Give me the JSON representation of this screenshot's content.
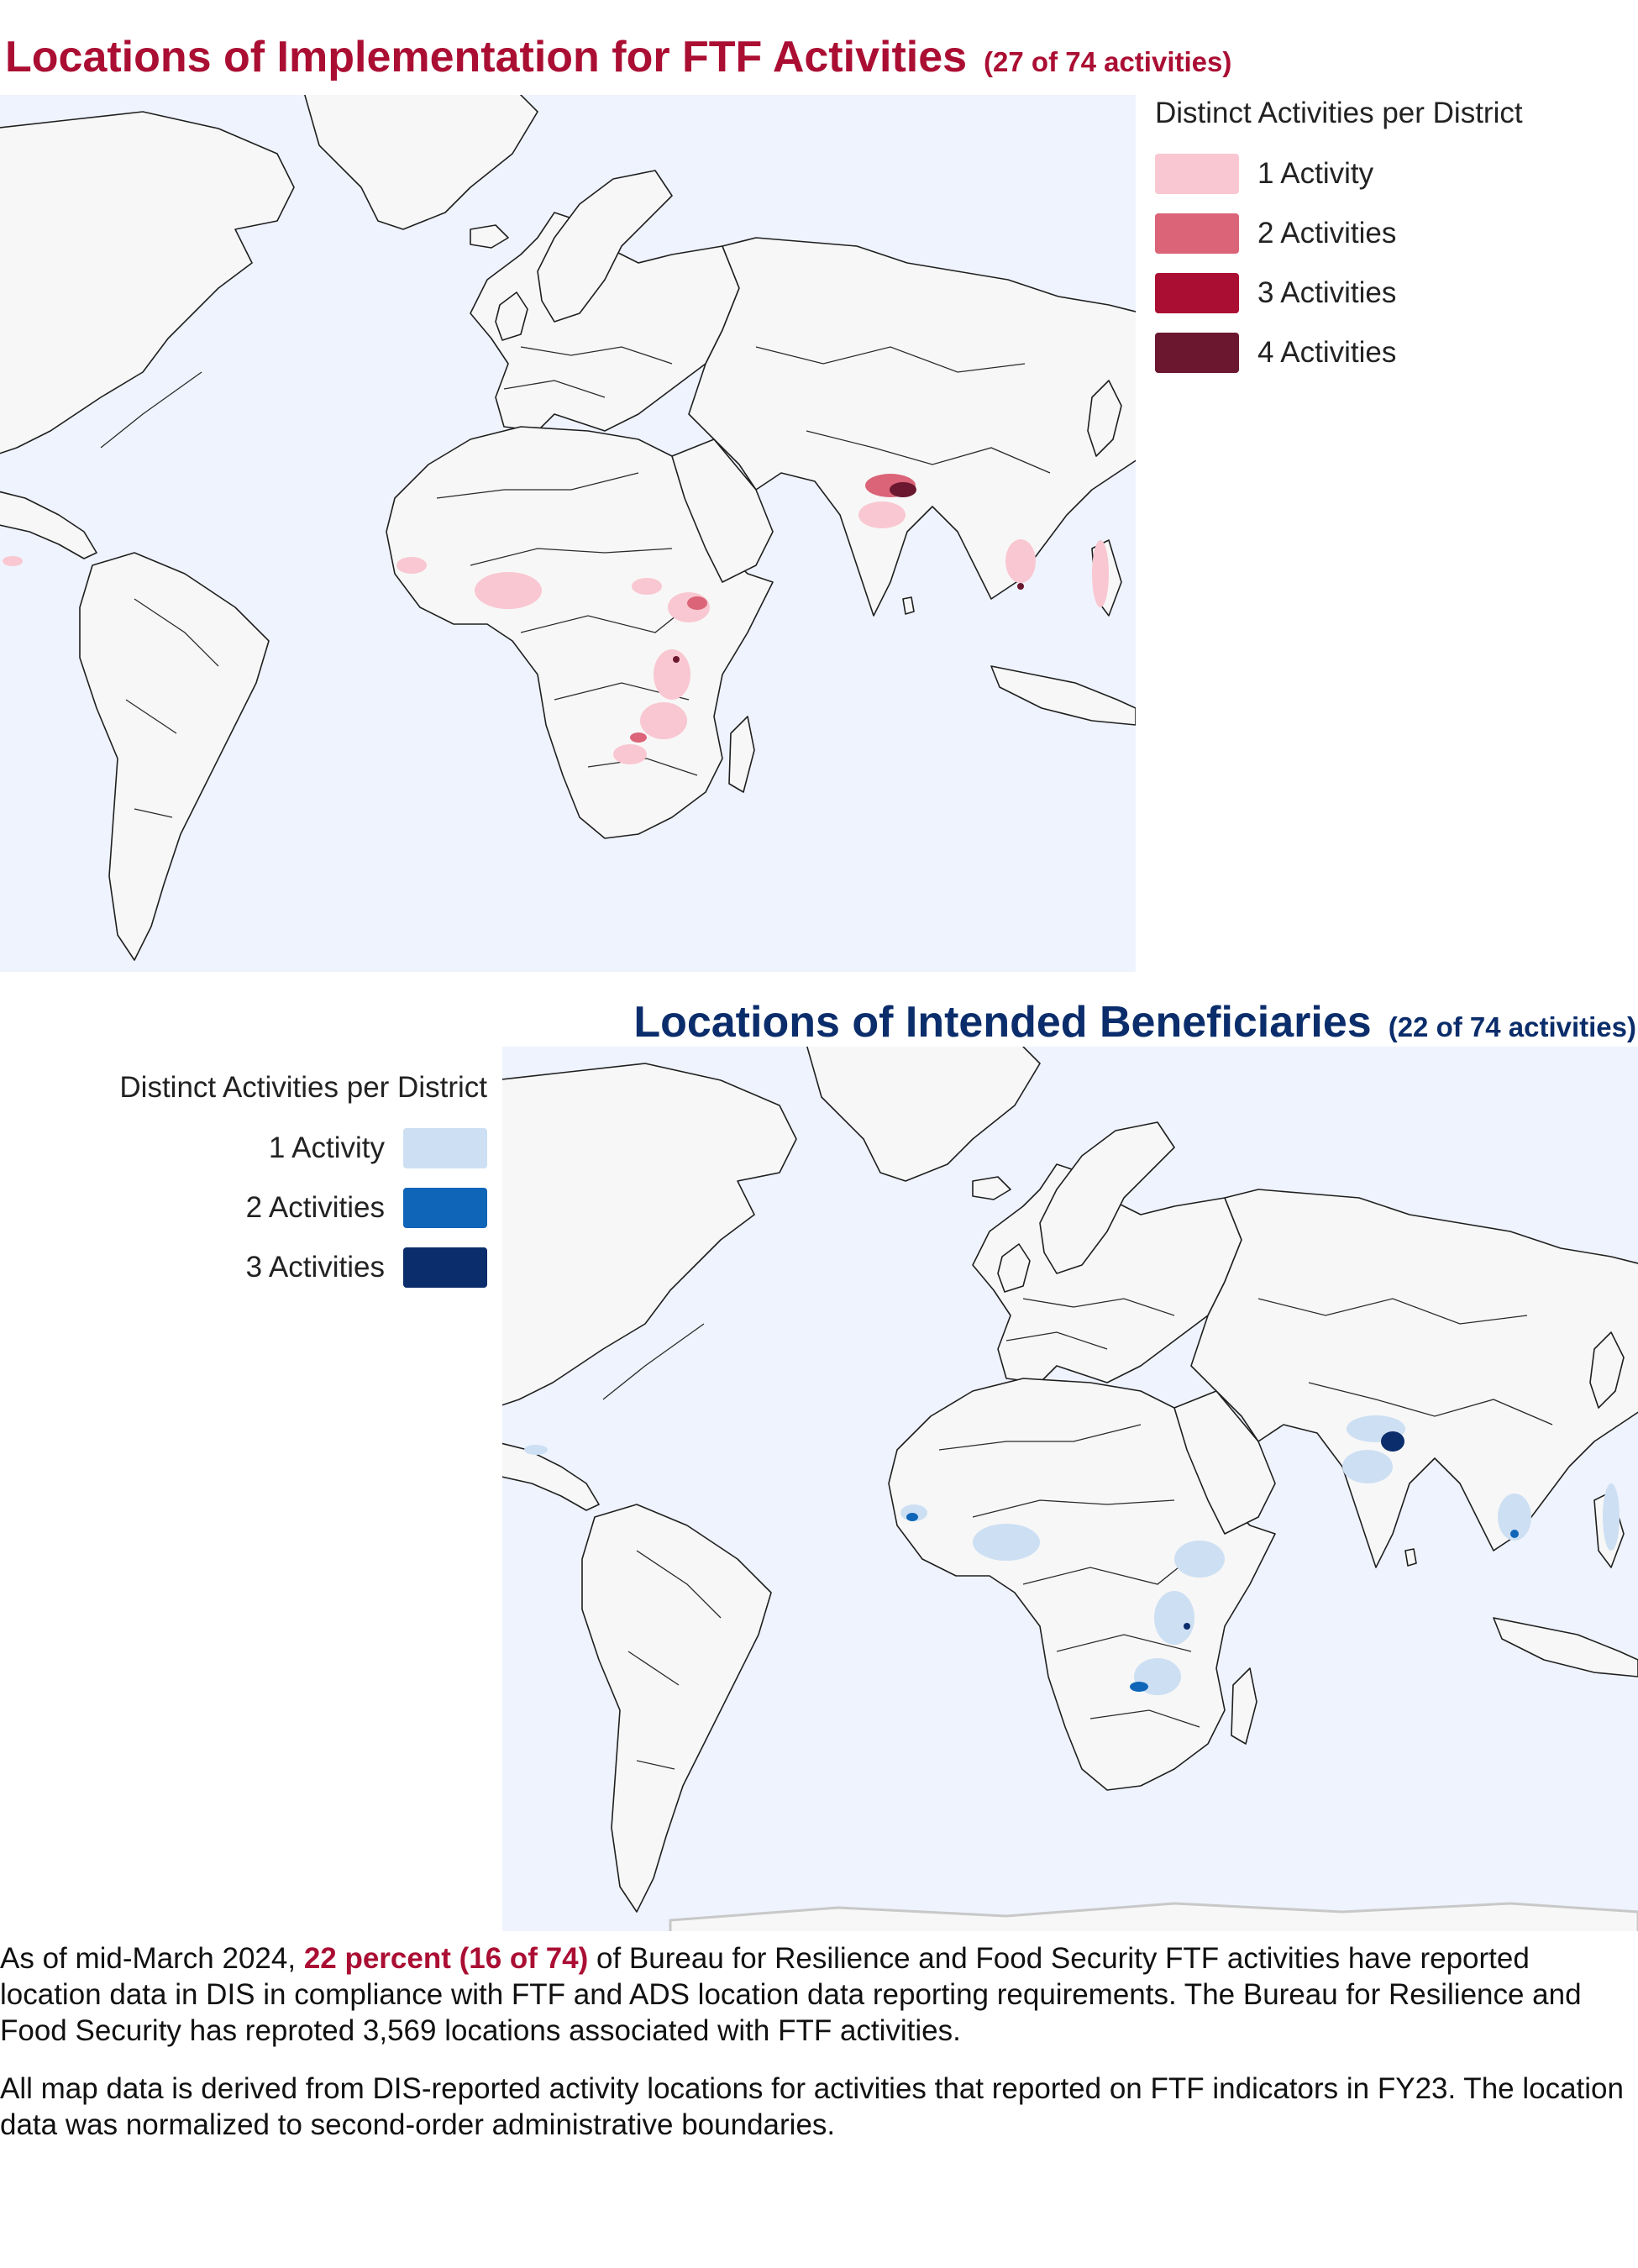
{
  "map1": {
    "title": "Locations of Implementation for FTF Activities",
    "subtitle": "(27 of 74 activities)",
    "title_color": "#ab0e33",
    "legend": {
      "title": "Distinct Activities per District",
      "items": [
        {
          "label": "1 Activity",
          "value": 1,
          "color": "#f9c7d1"
        },
        {
          "label": "2 Activities",
          "value": 2,
          "color": "#db6478"
        },
        {
          "label": "3 Activities",
          "value": 3,
          "color": "#ab0e33"
        },
        {
          "label": "4 Activities",
          "value": 4,
          "color": "#6b1730"
        }
      ]
    }
  },
  "map2": {
    "title": "Locations of Intended Beneficiaries",
    "subtitle": "(22 of 74 activities)",
    "title_color": "#0b2d6b",
    "legend": {
      "title": "Distinct Activities per District",
      "items": [
        {
          "label": "1 Activity",
          "value": 1,
          "color": "#cddff3"
        },
        {
          "label": "2 Activities",
          "value": 2,
          "color": "#0f65b8"
        },
        {
          "label": "3 Activities",
          "value": 3,
          "color": "#0b2d6b"
        }
      ]
    }
  },
  "notes": {
    "p1_pre": "As of mid-March 2024, ",
    "p1_highlight": "22 percent (16 of 74)",
    "p1_post": " of Bureau for Resilience and Food Security FTF activities have reported location data in DIS in compliance with FTF and ADS location data reporting requirements. The Bureau for Resilience and Food Security has reproted 3,569 locations associated with FTF activities.",
    "p2": "All map data is derived from DIS-reported activity locations for activities that reported on FTF indicators in FY23. The location data was normalized to second-order administrative boundaries."
  },
  "colors": {
    "ocean": "#eef3fd",
    "land": "#f7f7f7",
    "border": "#1f1f1f"
  }
}
